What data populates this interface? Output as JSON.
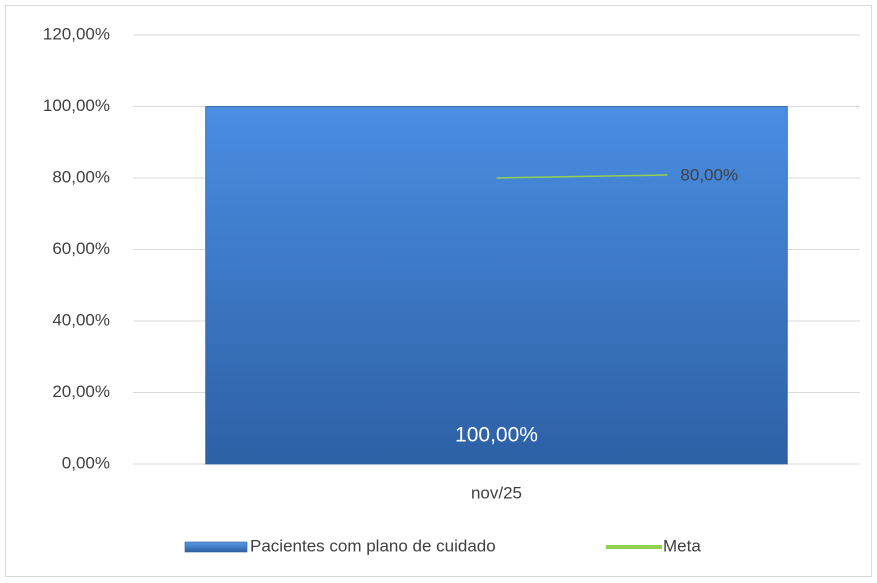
{
  "chart_data": {
    "type": "bar",
    "categories": [
      "nov/25"
    ],
    "series": [
      {
        "name": "Pacientes com plano de cuidado",
        "type": "bar",
        "color": "#3a78c8",
        "values": [
          100
        ],
        "value_labels": [
          "100,00%"
        ]
      },
      {
        "name": "Meta",
        "type": "line",
        "color": "#92d050",
        "values": [
          80
        ],
        "value_labels": [
          "80,00%"
        ]
      }
    ],
    "ylim": [
      0,
      120
    ],
    "yticks": [
      {
        "value": 0,
        "label": "0,00%"
      },
      {
        "value": 20,
        "label": "20,00%"
      },
      {
        "value": 40,
        "label": "40,00%"
      },
      {
        "value": 60,
        "label": "60,00%"
      },
      {
        "value": 80,
        "label": "80,00%"
      },
      {
        "value": 100,
        "label": "100,00%"
      },
      {
        "value": 120,
        "label": "120,00%"
      }
    ],
    "grid": true,
    "legend": "bottom"
  }
}
